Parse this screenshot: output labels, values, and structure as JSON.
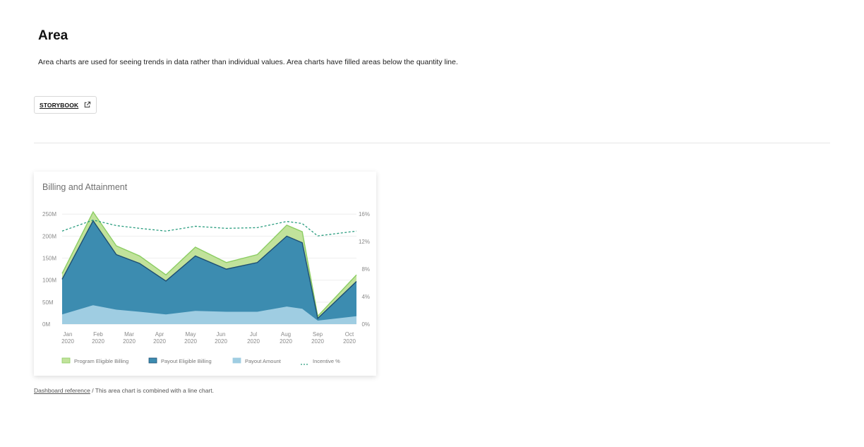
{
  "section": {
    "title": "Area",
    "description": "Area charts are used for seeing trends in data rather than individual values. Area charts have filled areas below the quantity line.",
    "storybook_label": "STORYBOOK",
    "external_icon": "external-link-icon"
  },
  "caption": {
    "link_text": "Dashboard reference",
    "text": " / This area chart is combined with a line chart."
  },
  "colors": {
    "program": "#c1e29b",
    "program_line": "#8ccd63",
    "payout_eligible": "#3c8cb0",
    "payout_line": "#1f4f73",
    "payout_amount": "#9fcde2",
    "incentive": "#2a9d7f",
    "grid": "#eeeeee",
    "axis_text": "#8a8a8a"
  },
  "chart_data": {
    "type": "area",
    "title": "Billing and Attainment",
    "categories": [
      "Jan 2020",
      "Feb 2020",
      "Mar 2020",
      "Apr 2020",
      "May 2020",
      "Jun 2020",
      "Jul 2020",
      "Aug 2020",
      "Sep 2020",
      "Oct 2020"
    ],
    "x_ticks": [
      {
        "line1": "Jan",
        "line2": "2020"
      },
      {
        "line1": "Feb",
        "line2": "2020"
      },
      {
        "line1": "Mar",
        "line2": "2020"
      },
      {
        "line1": "Apr",
        "line2": "2020"
      },
      {
        "line1": "May",
        "line2": "2020"
      },
      {
        "line1": "Jun",
        "line2": "2020"
      },
      {
        "line1": "Jul",
        "line2": "2020"
      },
      {
        "line1": "Aug",
        "line2": "2020"
      },
      {
        "line1": "Sep",
        "line2": "2020"
      },
      {
        "line1": "Oct",
        "line2": "2020"
      }
    ],
    "x": [
      0,
      1,
      1.75,
      2.5,
      3.35,
      4.3,
      5.3,
      6.3,
      7.25,
      7.75,
      8.25,
      9.5
    ],
    "y_left": {
      "ticks": [
        0,
        50,
        100,
        150,
        200,
        250
      ],
      "labels": [
        "0M",
        "50M",
        "100M",
        "150M",
        "200M",
        "250M"
      ],
      "lim": [
        0,
        260
      ]
    },
    "y_right": {
      "ticks": [
        0,
        4,
        8,
        12,
        16
      ],
      "labels": [
        "0%",
        "4%",
        "8%",
        "12%",
        "16%"
      ],
      "lim": [
        0,
        16.6
      ]
    },
    "series": [
      {
        "name": "Program Eligible Billing",
        "values": [
          115,
          255,
          178,
          155,
          112,
          175,
          140,
          158,
          225,
          210,
          18,
          112
        ]
      },
      {
        "name": "Payout Eligible Billing",
        "values": [
          102,
          235,
          158,
          138,
          98,
          155,
          125,
          140,
          200,
          185,
          13,
          97
        ]
      },
      {
        "name": "Payout Amount",
        "values": [
          22,
          43,
          33,
          28,
          22,
          30,
          28,
          28,
          40,
          35,
          8,
          18
        ]
      },
      {
        "name": "Incentive %",
        "values": [
          13.5,
          15.1,
          14.3,
          13.9,
          13.5,
          14.2,
          13.9,
          14.0,
          14.9,
          14.6,
          12.8,
          13.5
        ]
      }
    ],
    "legend_position": "bottom",
    "grid": true
  }
}
